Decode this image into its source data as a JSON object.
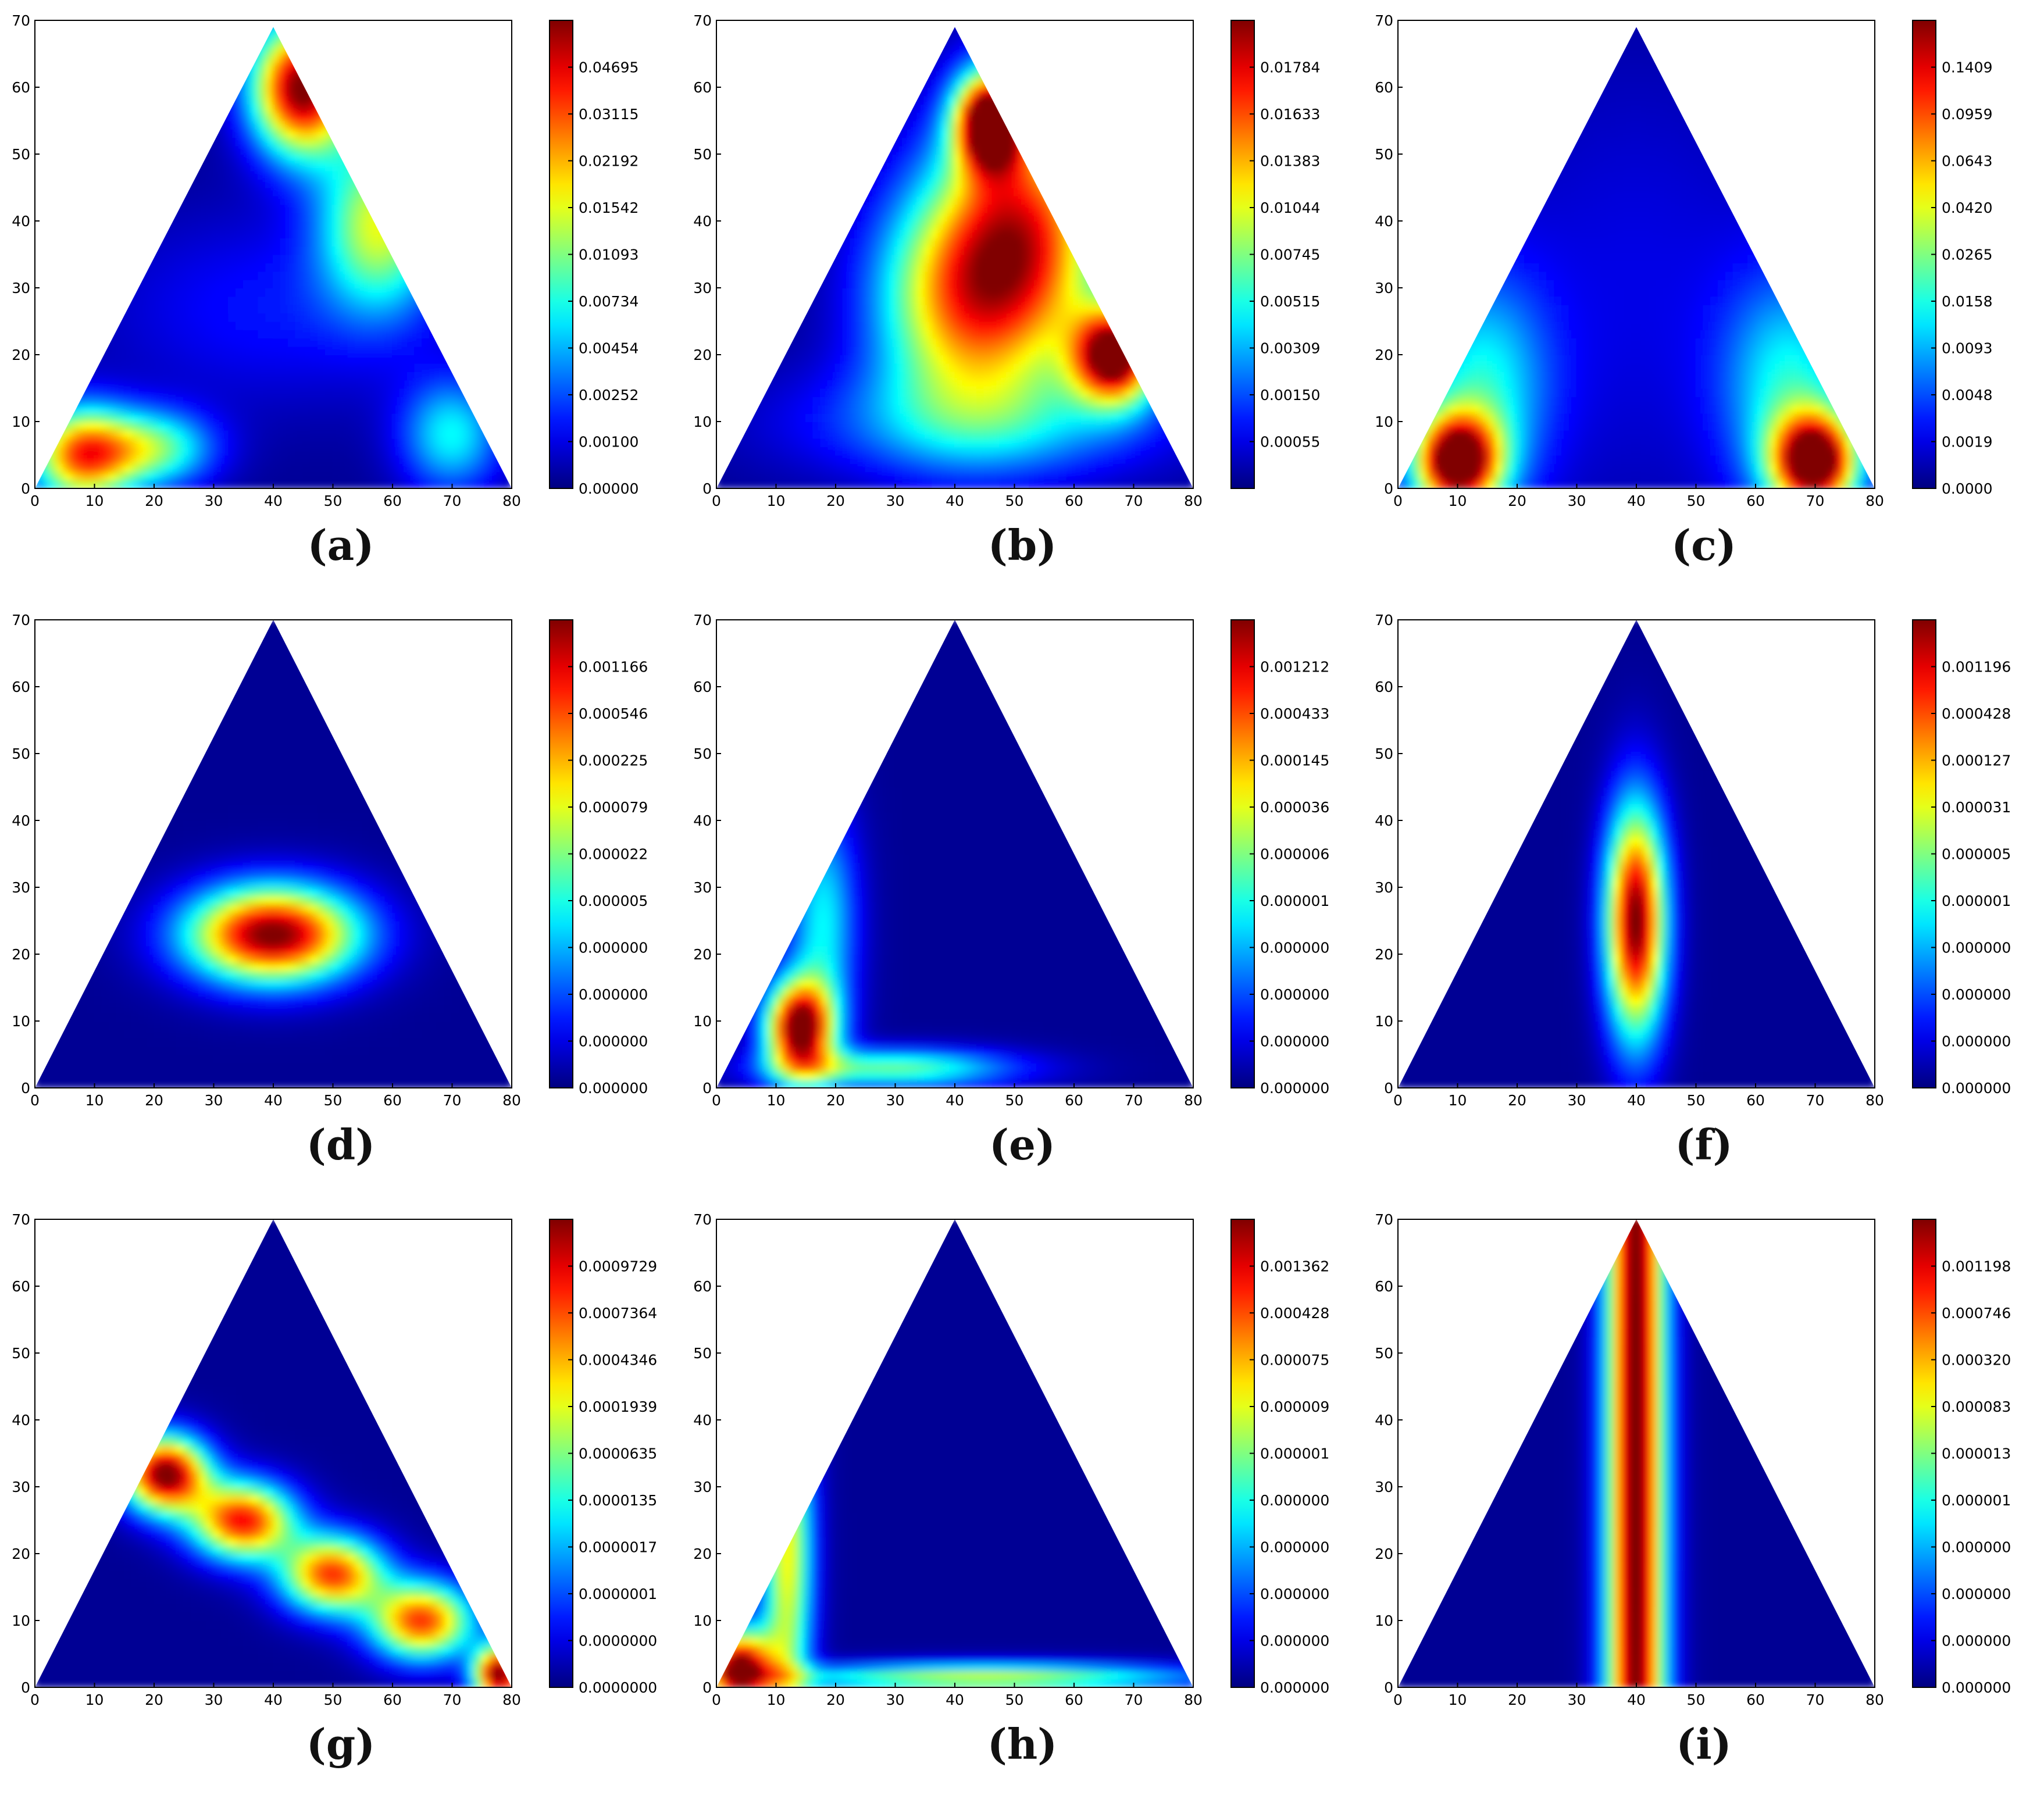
{
  "figure": {
    "panels": [
      {
        "label": "(a)",
        "colorbar_ticks": [
          "0.04695",
          "0.03115",
          "0.02192",
          "0.01542",
          "0.01093",
          "0.00734",
          "0.00454",
          "0.00252",
          "0.00100",
          "0.00000"
        ]
      },
      {
        "label": "(b)",
        "colorbar_ticks": [
          "0.01784",
          "0.01633",
          "0.01383",
          "0.01044",
          "0.00745",
          "0.00515",
          "0.00309",
          "0.00150",
          "0.00055"
        ]
      },
      {
        "label": "(c)",
        "colorbar_ticks": [
          "0.1409",
          "0.0959",
          "0.0643",
          "0.0420",
          "0.0265",
          "0.0158",
          "0.0093",
          "0.0048",
          "0.0019",
          "0.0000"
        ]
      },
      {
        "label": "(d)",
        "colorbar_ticks": [
          "0.001166",
          "0.000546",
          "0.000225",
          "0.000079",
          "0.000022",
          "0.000005",
          "0.000000",
          "0.000000",
          "0.000000",
          "0.000000"
        ]
      },
      {
        "label": "(e)",
        "colorbar_ticks": [
          "0.001212",
          "0.000433",
          "0.000145",
          "0.000036",
          "0.000006",
          "0.000001",
          "0.000000",
          "0.000000",
          "0.000000",
          "0.000000"
        ]
      },
      {
        "label": "(f)",
        "colorbar_ticks": [
          "0.001196",
          "0.000428",
          "0.000127",
          "0.000031",
          "0.000005",
          "0.000001",
          "0.000000",
          "0.000000",
          "0.000000",
          "0.000000"
        ]
      },
      {
        "label": "(g)",
        "colorbar_ticks": [
          "0.0009729",
          "0.0007364",
          "0.0004346",
          "0.0001939",
          "0.0000635",
          "0.0000135",
          "0.0000017",
          "0.0000001",
          "0.0000000",
          "0.0000000"
        ]
      },
      {
        "label": "(h)",
        "colorbar_ticks": [
          "0.001362",
          "0.000428",
          "0.000075",
          "0.000009",
          "0.000001",
          "0.000000",
          "0.000000",
          "0.000000",
          "0.000000",
          "0.000000"
        ]
      },
      {
        "label": "(i)",
        "colorbar_ticks": [
          "0.001198",
          "0.000746",
          "0.000320",
          "0.000083",
          "0.000013",
          "0.000001",
          "0.000000",
          "0.000000",
          "0.000000",
          "0.000000"
        ]
      }
    ]
  },
  "chart_data": [
    {
      "type": "heatmap",
      "panel": "(a)",
      "xlim": [
        0,
        80
      ],
      "ylim": [
        0,
        70
      ],
      "xticks": [
        0,
        10,
        20,
        30,
        40,
        50,
        60,
        70,
        80
      ],
      "yticks": [
        0,
        10,
        20,
        30,
        40,
        50,
        60,
        70
      ],
      "domain": "triangle",
      "triangle_vertices": [
        [
          0,
          0
        ],
        [
          80,
          0
        ],
        [
          40,
          69
        ]
      ],
      "colormap": "jet",
      "colorbar": true,
      "hotspots": [
        {
          "x": 45,
          "y": 60,
          "sx": 6,
          "sy": 7,
          "v": 1.0
        },
        {
          "x": 58,
          "y": 40,
          "sx": 7,
          "sy": 9,
          "v": 0.55
        },
        {
          "x": 8,
          "y": 5,
          "sx": 6,
          "sy": 5,
          "v": 0.75
        },
        {
          "x": 20,
          "y": 6,
          "sx": 7,
          "sy": 4,
          "v": 0.45
        },
        {
          "x": 70,
          "y": 8,
          "sx": 6,
          "sy": 6,
          "v": 0.35
        },
        {
          "x": 40,
          "y": 27,
          "sx": 20,
          "sy": 10,
          "v": 0.12
        }
      ]
    },
    {
      "type": "heatmap",
      "panel": "(b)",
      "xlim": [
        0,
        80
      ],
      "ylim": [
        0,
        70
      ],
      "xticks": [
        0,
        10,
        20,
        30,
        40,
        50,
        60,
        70,
        80
      ],
      "yticks": [
        0,
        10,
        20,
        30,
        40,
        50,
        60,
        70
      ],
      "domain": "triangle",
      "triangle_vertices": [
        [
          0,
          0
        ],
        [
          80,
          0
        ],
        [
          40,
          69
        ]
      ],
      "colormap": "jet",
      "colorbar": true,
      "hotspots": [
        {
          "x": 46,
          "y": 55,
          "sx": 4,
          "sy": 5,
          "v": 1.0
        },
        {
          "x": 67,
          "y": 20,
          "sx": 5,
          "sy": 5,
          "v": 1.0
        },
        {
          "x": 52,
          "y": 38,
          "sx": 10,
          "sy": 14,
          "v": 0.75
        },
        {
          "x": 40,
          "y": 28,
          "sx": 10,
          "sy": 12,
          "v": 0.55
        },
        {
          "x": 45,
          "y": 10,
          "sx": 22,
          "sy": 6,
          "v": 0.25
        }
      ]
    },
    {
      "type": "heatmap",
      "panel": "(c)",
      "xlim": [
        0,
        80
      ],
      "ylim": [
        0,
        70
      ],
      "xticks": [
        0,
        10,
        20,
        30,
        40,
        50,
        60,
        70,
        80
      ],
      "yticks": [
        0,
        10,
        20,
        30,
        40,
        50,
        60,
        70
      ],
      "domain": "triangle",
      "triangle_vertices": [
        [
          0,
          0
        ],
        [
          80,
          0
        ],
        [
          40,
          69
        ]
      ],
      "colormap": "jet",
      "colorbar": true,
      "hotspots": [
        {
          "x": 10,
          "y": 4,
          "sx": 5,
          "sy": 5,
          "v": 1.0
        },
        {
          "x": 70,
          "y": 4,
          "sx": 5,
          "sy": 5,
          "v": 1.0
        },
        {
          "x": 14,
          "y": 15,
          "sx": 8,
          "sy": 12,
          "v": 0.35
        },
        {
          "x": 66,
          "y": 15,
          "sx": 8,
          "sy": 12,
          "v": 0.35
        },
        {
          "x": 40,
          "y": 30,
          "sx": 20,
          "sy": 25,
          "v": 0.08
        }
      ]
    },
    {
      "type": "heatmap",
      "panel": "(d)",
      "xlim": [
        0,
        80
      ],
      "ylim": [
        0,
        70
      ],
      "xticks": [
        0,
        10,
        20,
        30,
        40,
        50,
        60,
        70,
        80
      ],
      "yticks": [
        0,
        10,
        20,
        30,
        40,
        50,
        60,
        70
      ],
      "domain": "triangle",
      "triangle_vertices": [
        [
          0,
          0
        ],
        [
          80,
          0
        ],
        [
          40,
          70
        ]
      ],
      "colormap": "jet",
      "colorbar": true,
      "hotspots": [
        {
          "x": 40,
          "y": 23,
          "sx": 10,
          "sy": 5,
          "v": 1.0
        }
      ]
    },
    {
      "type": "heatmap",
      "panel": "(e)",
      "xlim": [
        0,
        80
      ],
      "ylim": [
        0,
        70
      ],
      "xticks": [
        0,
        10,
        20,
        30,
        40,
        50,
        60,
        70,
        80
      ],
      "yticks": [
        0,
        10,
        20,
        30,
        40,
        50,
        60,
        70
      ],
      "domain": "triangle",
      "triangle_vertices": [
        [
          0,
          0
        ],
        [
          80,
          0
        ],
        [
          40,
          70
        ]
      ],
      "colormap": "jet",
      "colorbar": true,
      "hotspots": [
        {
          "x": 14,
          "y": 9,
          "sx": 4,
          "sy": 5,
          "v": 1.0
        },
        {
          "x": 30,
          "y": 3,
          "sx": 14,
          "sy": 2,
          "v": 0.45
        },
        {
          "x": 18,
          "y": 25,
          "sx": 4,
          "sy": 12,
          "v": 0.35
        }
      ]
    },
    {
      "type": "heatmap",
      "panel": "(f)",
      "xlim": [
        0,
        80
      ],
      "ylim": [
        0,
        70
      ],
      "xticks": [
        0,
        10,
        20,
        30,
        40,
        50,
        60,
        70,
        80
      ],
      "yticks": [
        0,
        10,
        20,
        30,
        40,
        50,
        60,
        70
      ],
      "domain": "triangle",
      "triangle_vertices": [
        [
          0,
          0
        ],
        [
          80,
          0
        ],
        [
          40,
          70
        ]
      ],
      "colormap": "jet",
      "colorbar": true,
      "hotspots": [
        {
          "x": 40,
          "y": 25,
          "sx": 3.5,
          "sy": 12,
          "v": 1.0
        }
      ]
    },
    {
      "type": "heatmap",
      "panel": "(g)",
      "xlim": [
        0,
        80
      ],
      "ylim": [
        0,
        70
      ],
      "xticks": [
        0,
        10,
        20,
        30,
        40,
        50,
        60,
        70,
        80
      ],
      "yticks": [
        0,
        10,
        20,
        30,
        40,
        50,
        60,
        70
      ],
      "domain": "triangle",
      "triangle_vertices": [
        [
          0,
          0
        ],
        [
          80,
          0
        ],
        [
          40,
          70
        ]
      ],
      "colormap": "jet",
      "colorbar": true,
      "hotspots": [
        {
          "x": 22,
          "y": 32,
          "sx": 5,
          "sy": 4,
          "v": 1.0
        },
        {
          "x": 35,
          "y": 25,
          "sx": 6,
          "sy": 4,
          "v": 0.85
        },
        {
          "x": 50,
          "y": 17,
          "sx": 6,
          "sy": 4,
          "v": 0.8
        },
        {
          "x": 65,
          "y": 10,
          "sx": 6,
          "sy": 4,
          "v": 0.8
        },
        {
          "x": 78,
          "y": 2,
          "sx": 3,
          "sy": 3,
          "v": 1.0
        }
      ]
    },
    {
      "type": "heatmap",
      "panel": "(h)",
      "xlim": [
        0,
        80
      ],
      "ylim": [
        0,
        70
      ],
      "xticks": [
        0,
        10,
        20,
        30,
        40,
        50,
        60,
        70,
        80
      ],
      "yticks": [
        0,
        10,
        20,
        30,
        40,
        50,
        60,
        70
      ],
      "domain": "triangle",
      "triangle_vertices": [
        [
          0,
          0
        ],
        [
          80,
          0
        ],
        [
          40,
          70
        ]
      ],
      "colormap": "jet",
      "colorbar": true,
      "hotspots": [
        {
          "x": 4,
          "y": 3,
          "sx": 4,
          "sy": 4,
          "v": 1.0
        },
        {
          "x": 12,
          "y": 20,
          "sx": 3,
          "sy": 18,
          "v": 0.6
        },
        {
          "x": 45,
          "y": 1.5,
          "sx": 25,
          "sy": 1.5,
          "v": 0.55
        }
      ]
    },
    {
      "type": "heatmap",
      "panel": "(i)",
      "xlim": [
        0,
        80
      ],
      "ylim": [
        0,
        70
      ],
      "xticks": [
        0,
        10,
        20,
        30,
        40,
        50,
        60,
        70,
        80
      ],
      "yticks": [
        0,
        10,
        20,
        30,
        40,
        50,
        60,
        70
      ],
      "domain": "triangle",
      "triangle_vertices": [
        [
          0,
          0
        ],
        [
          80,
          0
        ],
        [
          40,
          70
        ]
      ],
      "colormap": "jet",
      "colorbar": true,
      "hotspots": [
        {
          "x": 40,
          "y": 35,
          "sx": 3.5,
          "sy": 200,
          "v": 1.0
        }
      ]
    }
  ]
}
